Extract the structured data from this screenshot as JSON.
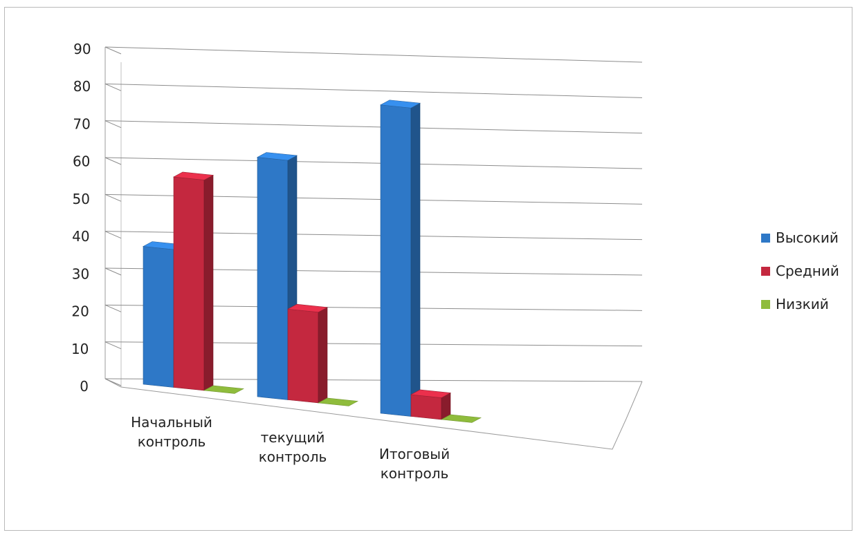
{
  "chart_data": {
    "type": "bar",
    "categories": [
      [
        "Начальный",
        "контроль"
      ],
      [
        "текущий",
        "контроль"
      ],
      [
        "Итоговый",
        "контроль"
      ]
    ],
    "series": [
      {
        "name": "Высокий",
        "values": [
          38,
          66,
          85
        ],
        "color": "#2e78c7"
      },
      {
        "name": "Средний",
        "values": [
          58,
          25,
          6
        ],
        "color": "#c4283f"
      },
      {
        "name": "Низкий",
        "values": [
          0,
          0,
          0
        ],
        "color": "#8fbc3c"
      }
    ],
    "ylim": [
      0,
      90
    ],
    "yticks": [
      0,
      10,
      20,
      30,
      40,
      50,
      60,
      70,
      80,
      90
    ],
    "grid": true,
    "legend": "right"
  }
}
